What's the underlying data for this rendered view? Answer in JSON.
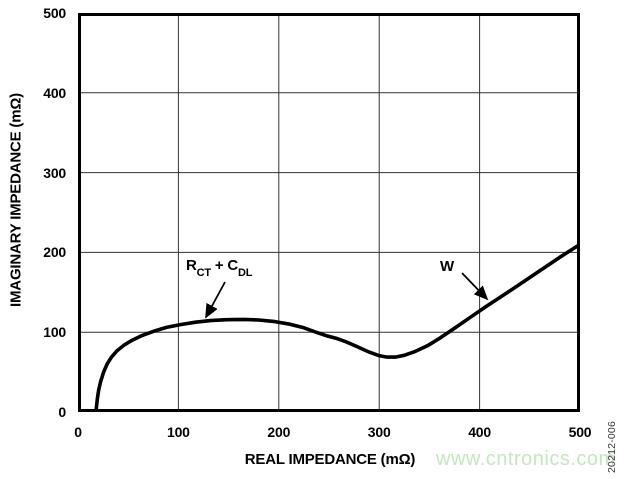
{
  "chart_data": {
    "type": "line",
    "title": "",
    "xlabel": "REAL IMPEDANCE (mΩ)",
    "ylabel": "IMAGINARY IMPEDANCE (mΩ)",
    "xlim": [
      0,
      500
    ],
    "ylim": [
      0,
      500
    ],
    "x_ticks": [
      0,
      100,
      200,
      300,
      400,
      500
    ],
    "y_ticks": [
      0,
      100,
      200,
      300,
      400,
      500
    ],
    "grid": true,
    "legend_position": "none",
    "series": [
      {
        "name": "nyquist-impedance-curve",
        "points": [
          [
            18,
            0
          ],
          [
            18.4,
            7
          ],
          [
            19.2,
            16
          ],
          [
            20.5,
            27
          ],
          [
            22.5,
            38
          ],
          [
            25.5,
            50
          ],
          [
            29,
            60
          ],
          [
            33.5,
            69
          ],
          [
            39,
            77
          ],
          [
            46,
            84
          ],
          [
            54,
            90
          ],
          [
            64,
            96
          ],
          [
            75,
            101
          ],
          [
            88,
            106
          ],
          [
            102,
            109.5
          ],
          [
            117,
            112.5
          ],
          [
            132,
            114.5
          ],
          [
            148,
            115.7
          ],
          [
            164,
            116
          ],
          [
            180,
            115.3
          ],
          [
            196,
            113.3
          ],
          [
            211,
            110
          ],
          [
            225,
            105.5
          ],
          [
            237,
            100
          ],
          [
            247,
            95.8
          ],
          [
            257,
            92.5
          ],
          [
            267,
            88
          ],
          [
            278,
            82
          ],
          [
            290,
            75
          ],
          [
            300,
            70.5
          ],
          [
            308,
            68.8
          ],
          [
            316,
            68.8
          ],
          [
            325,
            71
          ],
          [
            336,
            76
          ],
          [
            348,
            83
          ],
          [
            361,
            93
          ],
          [
            375,
            105
          ],
          [
            390,
            118
          ],
          [
            405,
            131
          ],
          [
            422,
            145
          ],
          [
            440,
            160
          ],
          [
            460,
            177
          ],
          [
            480,
            194
          ],
          [
            500,
            210
          ]
        ]
      }
    ],
    "annotations": [
      {
        "id": "rct-cdl",
        "label_plain": "RCT + CDL",
        "parts": [
          {
            "t": "R"
          },
          {
            "t": "CT",
            "sub": true
          },
          {
            "t": " + C"
          },
          {
            "t": "DL",
            "sub": true
          }
        ],
        "arrow_from": [
          147,
          269
        ],
        "arrow_to": [
          128,
          304
        ]
      },
      {
        "id": "warburg",
        "label": "W",
        "arrow_from": [
          384,
          260
        ],
        "arrow_to": [
          409,
          286
        ]
      }
    ]
  },
  "watermark": "www.cntronics.com",
  "figure_number": "20212-006",
  "colors": {
    "curve": "#000000",
    "axis_border": "#000000",
    "grid": "#333333",
    "text": "#000000",
    "watermark": "#c6e5c0",
    "figure_number": "#3a3a3a"
  }
}
